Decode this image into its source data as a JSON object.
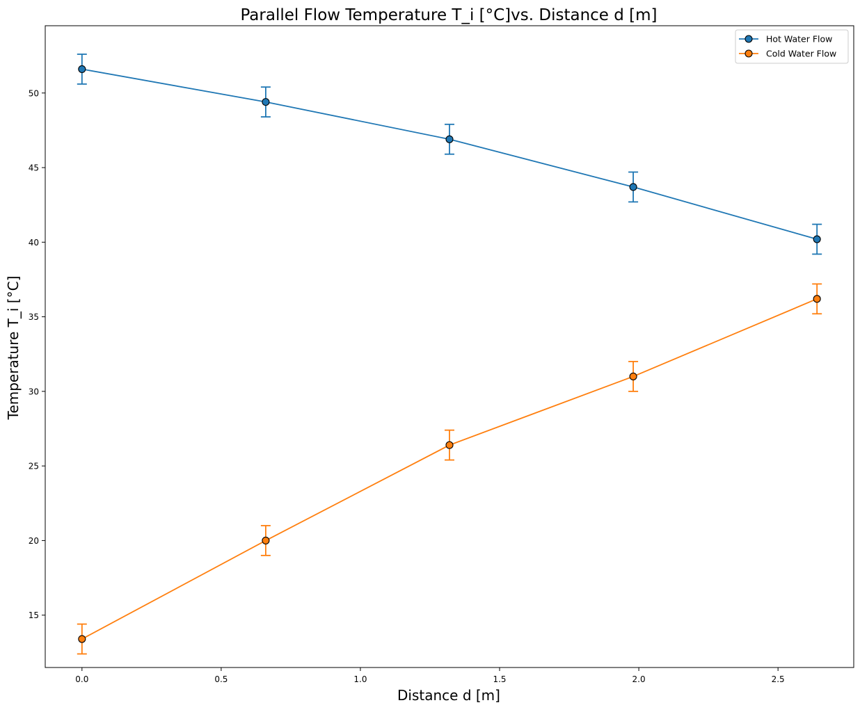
{
  "chart_data": {
    "type": "line",
    "title": "Parallel Flow Temperature T_i [°C]vs. Distance d [m]",
    "xlabel": "Distance d [m]",
    "ylabel": "Temperature T_i [°C]",
    "xlim": [
      -0.132,
      2.772
    ],
    "ylim": [
      11.49,
      54.51
    ],
    "xticks": [
      0.0,
      0.5,
      1.0,
      1.5,
      2.0,
      2.5
    ],
    "xtick_labels": [
      "0.0",
      "0.5",
      "1.0",
      "1.5",
      "2.0",
      "2.5"
    ],
    "yticks": [
      15,
      20,
      25,
      30,
      35,
      40,
      45,
      50
    ],
    "ytick_labels": [
      "15",
      "20",
      "25",
      "30",
      "35",
      "40",
      "45",
      "50"
    ],
    "grid": false,
    "legend_position": "top-right",
    "x": [
      0.0,
      0.66,
      1.32,
      1.98,
      2.64
    ],
    "series": [
      {
        "name": "Hot Water Flow",
        "color": "#1f77b4",
        "values": [
          51.6,
          49.4,
          46.9,
          43.7,
          40.2
        ],
        "error": 1.0,
        "marker": "circle"
      },
      {
        "name": "Cold Water Flow",
        "color": "#ff7f0e",
        "values": [
          13.4,
          20.0,
          26.4,
          31.0,
          36.2
        ],
        "error": 1.0,
        "marker": "circle"
      }
    ]
  }
}
